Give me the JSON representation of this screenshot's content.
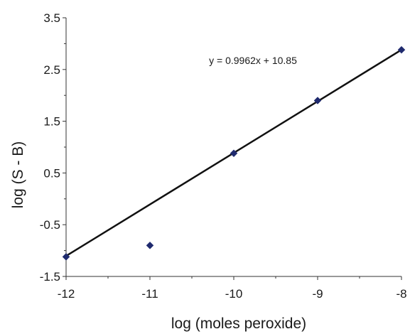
{
  "chart_data": {
    "type": "scatter",
    "title": "",
    "xlabel": "log (moles peroxide)",
    "ylabel": "log (S - B)",
    "xlim": [
      -12,
      -8
    ],
    "ylim": [
      -1.5,
      3.5
    ],
    "xticks": [
      "-12",
      "-11",
      "-10",
      "-9",
      "-8"
    ],
    "yticks": [
      "3.5",
      "2.5",
      "1.5",
      "0.5",
      "-0.5",
      "-1.5"
    ],
    "grid": false,
    "legend": "none",
    "series": [
      {
        "x": [
          -12,
          -11,
          -10,
          -9,
          -8
        ],
        "y": [
          -1.12,
          -0.9,
          0.88,
          1.9,
          2.88
        ],
        "marker": "diamond",
        "color": "#1f2a6e"
      }
    ],
    "trendline": {
      "slope": 0.9962,
      "intercept": 10.85,
      "color": "#111111",
      "equation": "y = 0.9962x + 10.85"
    }
  }
}
